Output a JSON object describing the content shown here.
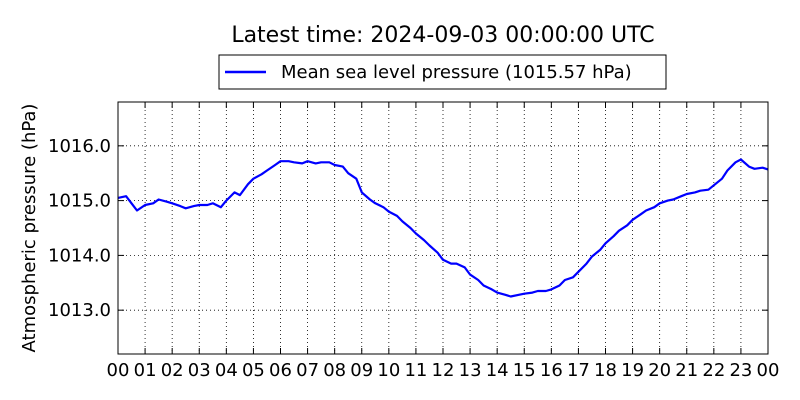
{
  "chart_data": {
    "type": "line",
    "title": "Latest time: 2024-09-03 00:00:00 UTC",
    "xlabel": "",
    "ylabel": "Atmospheric pressure (hPa)",
    "xlim": [
      0,
      24
    ],
    "ylim": [
      1012.2,
      1016.8
    ],
    "grid": true,
    "legend_position": "top-center (above plot)",
    "x_tick_labels": [
      "00",
      "01",
      "02",
      "03",
      "04",
      "05",
      "06",
      "07",
      "08",
      "09",
      "10",
      "11",
      "12",
      "13",
      "14",
      "15",
      "16",
      "17",
      "18",
      "19",
      "20",
      "21",
      "22",
      "23",
      "00"
    ],
    "y_ticks": [
      1013.0,
      1014.0,
      1015.0,
      1016.0
    ],
    "y_tick_labels": [
      "1013.0",
      "1014.0",
      "1015.0",
      "1016.0"
    ],
    "series": [
      {
        "name": "Mean sea level pressure (1015.57 hPa)",
        "color": "#0000ff",
        "x": [
          0,
          0.3,
          0.5,
          0.7,
          1.0,
          1.3,
          1.5,
          1.8,
          2.0,
          2.3,
          2.5,
          2.8,
          3.0,
          3.3,
          3.5,
          3.8,
          4.0,
          4.3,
          4.5,
          4.8,
          5.0,
          5.3,
          5.5,
          5.8,
          6.0,
          6.3,
          6.5,
          6.8,
          7.0,
          7.3,
          7.5,
          7.8,
          8.0,
          8.3,
          8.5,
          8.8,
          9.0,
          9.3,
          9.5,
          9.8,
          10.0,
          10.3,
          10.5,
          10.8,
          11.0,
          11.3,
          11.5,
          11.8,
          12.0,
          12.3,
          12.5,
          12.8,
          13.0,
          13.3,
          13.5,
          13.8,
          14.0,
          14.3,
          14.5,
          14.8,
          15.0,
          15.3,
          15.5,
          15.8,
          16.0,
          16.3,
          16.5,
          16.8,
          17.0,
          17.3,
          17.5,
          17.8,
          18.0,
          18.3,
          18.5,
          18.8,
          19.0,
          19.3,
          19.5,
          19.8,
          20.0,
          20.3,
          20.5,
          20.8,
          21.0,
          21.3,
          21.5,
          21.8,
          22.0,
          22.3,
          22.5,
          22.8,
          23.0,
          23.3,
          23.5,
          23.8,
          24.0
        ],
        "values": [
          1015.05,
          1015.08,
          1014.95,
          1014.82,
          1014.92,
          1014.95,
          1015.02,
          1014.98,
          1014.95,
          1014.9,
          1014.86,
          1014.9,
          1014.92,
          1014.92,
          1014.95,
          1014.88,
          1015.0,
          1015.15,
          1015.1,
          1015.3,
          1015.4,
          1015.48,
          1015.55,
          1015.65,
          1015.72,
          1015.72,
          1015.7,
          1015.68,
          1015.72,
          1015.68,
          1015.7,
          1015.7,
          1015.65,
          1015.62,
          1015.5,
          1015.4,
          1015.15,
          1015.02,
          1014.95,
          1014.88,
          1014.8,
          1014.72,
          1014.62,
          1014.5,
          1014.4,
          1014.28,
          1014.18,
          1014.05,
          1013.92,
          1013.85,
          1013.85,
          1013.78,
          1013.65,
          1013.55,
          1013.45,
          1013.38,
          1013.32,
          1013.28,
          1013.25,
          1013.28,
          1013.3,
          1013.32,
          1013.35,
          1013.35,
          1013.38,
          1013.45,
          1013.55,
          1013.6,
          1013.7,
          1013.85,
          1013.98,
          1014.1,
          1014.22,
          1014.35,
          1014.45,
          1014.55,
          1014.65,
          1014.75,
          1014.82,
          1014.88,
          1014.95,
          1015.0,
          1015.02,
          1015.08,
          1015.12,
          1015.15,
          1015.18,
          1015.2,
          1015.28,
          1015.4,
          1015.55,
          1015.7,
          1015.75,
          1015.62,
          1015.58,
          1015.6,
          1015.57
        ]
      }
    ]
  }
}
